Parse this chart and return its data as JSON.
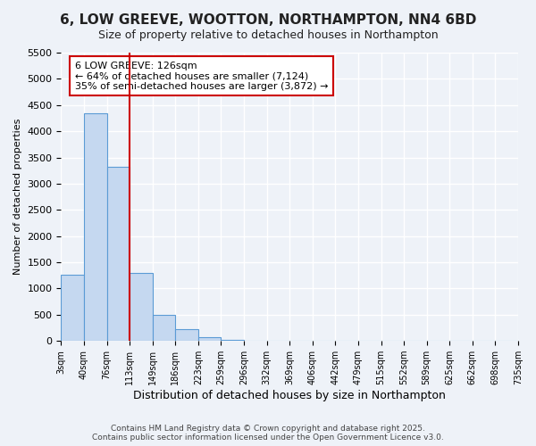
{
  "title": "6, LOW GREEVE, WOOTTON, NORTHAMPTON, NN4 6BD",
  "subtitle": "Size of property relative to detached houses in Northampton",
  "xlabel": "Distribution of detached houses by size in Northampton",
  "ylabel": "Number of detached properties",
  "bin_labels": [
    "3sqm",
    "40sqm",
    "76sqm",
    "113sqm",
    "149sqm",
    "186sqm",
    "223sqm",
    "259sqm",
    "296sqm",
    "332sqm",
    "369sqm",
    "406sqm",
    "442sqm",
    "479sqm",
    "515sqm",
    "552sqm",
    "589sqm",
    "625sqm",
    "662sqm",
    "698sqm",
    "735sqm"
  ],
  "bar_heights": [
    1270,
    4350,
    3320,
    1290,
    500,
    230,
    70,
    20,
    5,
    2,
    1,
    0,
    0,
    0,
    0,
    0,
    0,
    0,
    0,
    0
  ],
  "bar_color": "#c5d8f0",
  "bar_edge_color": "#5b9bd5",
  "vline_x": 3.0,
  "vline_color": "#cc0000",
  "ylim": [
    0,
    5500
  ],
  "yticks": [
    0,
    500,
    1000,
    1500,
    2000,
    2500,
    3000,
    3500,
    4000,
    4500,
    5000,
    5500
  ],
  "annotation_title": "6 LOW GREEVE: 126sqm",
  "annotation_line1": "← 64% of detached houses are smaller (7,124)",
  "annotation_line2": "35% of semi-detached houses are larger (3,872) →",
  "annotation_border_color": "#cc0000",
  "footer_line1": "Contains HM Land Registry data © Crown copyright and database right 2025.",
  "footer_line2": "Contains public sector information licensed under the Open Government Licence v3.0.",
  "background_color": "#eef2f8",
  "grid_color": "#ffffff"
}
